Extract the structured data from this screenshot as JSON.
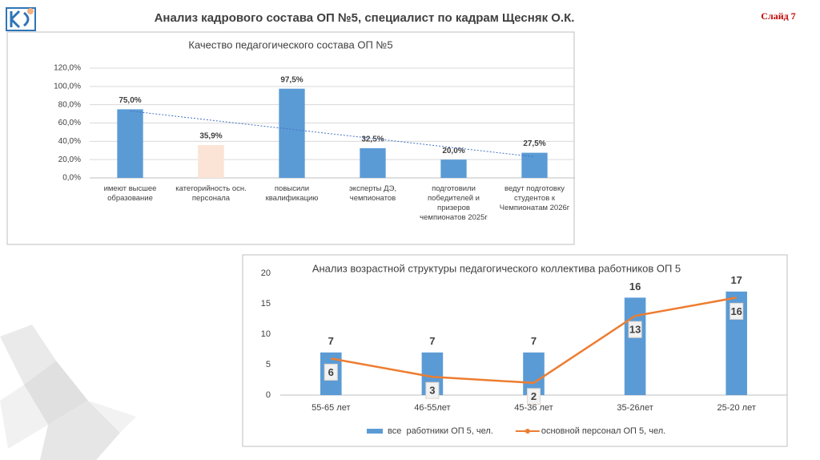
{
  "title": "Анализ кадрового состава ОП №5, специалист по кадрам Щесняк О.К.",
  "slide_label": "Слайд 7",
  "chart_data": [
    {
      "type": "bar",
      "title": "Качество педагогического состава ОП №5",
      "categories": [
        "имеют высшее\nобразование",
        "категорийность осн.\nперсонала",
        "повысили\nквалификацию",
        "эксперты ДЭ,\nчемпионатов",
        "подготовили\nпобедителей и\nпризеров\nчемпионатов 2025г",
        "ведут подготовку\nстудентов к\nЧемпионатам 2026г"
      ],
      "values": [
        75.0,
        35.9,
        97.5,
        32.5,
        20.0,
        27.5
      ],
      "value_labels": [
        "75,0%",
        "35,9%",
        "97,5%",
        "32,5%",
        "20,0%",
        "27,5%"
      ],
      "colors": [
        "#5b9bd5",
        "#fbe3d6",
        "#5b9bd5",
        "#5b9bd5",
        "#5b9bd5",
        "#5b9bd5"
      ],
      "ylim": [
        0,
        120
      ],
      "yticks": [
        {
          "value": 0,
          "label": "0,0%"
        },
        {
          "value": 20,
          "label": "20,0%"
        },
        {
          "value": 40,
          "label": "40,0%"
        },
        {
          "value": 60,
          "label": "60,0%"
        },
        {
          "value": 80,
          "label": "80,0%"
        },
        {
          "value": 100,
          "label": "100,0%"
        },
        {
          "value": 120,
          "label": "120,0%"
        }
      ],
      "grid": true,
      "trendline": true,
      "trendline_color": "#4472c4"
    },
    {
      "type": "combo",
      "title": "Анализ возрастной структуры педагогического коллектива работников ОП 5",
      "categories": [
        "55-65 лет",
        "46-55лет",
        "45-36 лет",
        "35-26лет",
        "25-20 лет"
      ],
      "series": [
        {
          "name": "все  работники ОП 5, чел.",
          "type": "bar",
          "color": "#5b9bd5",
          "values": [
            7,
            7,
            7,
            16,
            17
          ]
        },
        {
          "name": "основной персонал ОП 5, чел.",
          "type": "line",
          "color": "#ed7d31",
          "values": [
            6,
            3,
            2,
            13,
            16
          ]
        }
      ],
      "ylim": [
        0,
        20
      ],
      "yticks": [
        0,
        5,
        10,
        15,
        20
      ],
      "grid": false,
      "legend": "bottom"
    }
  ]
}
